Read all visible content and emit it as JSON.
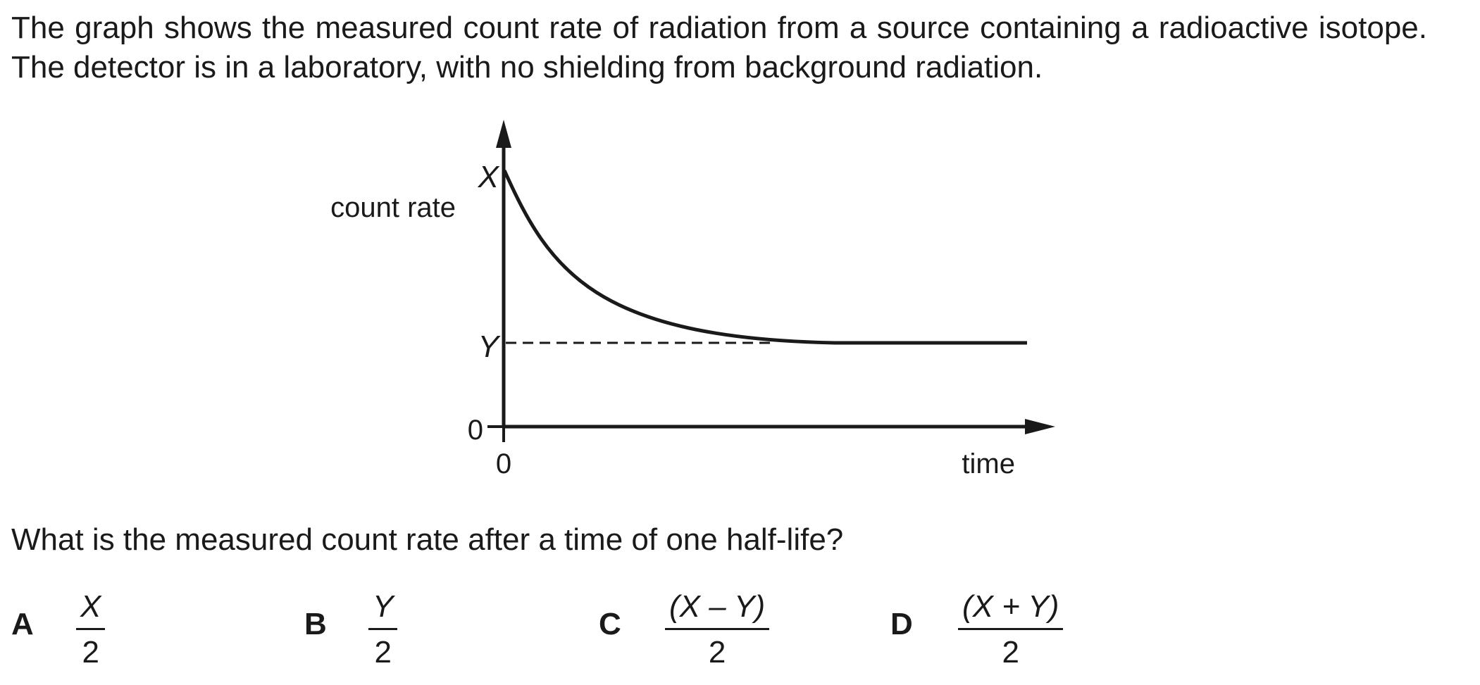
{
  "intro": "The graph shows the measured count rate of radiation from a source containing a radioactive isotope. The detector is in a laboratory, with no shielding from background radiation.",
  "graph": {
    "y_axis_label": "count rate",
    "x_axis_label": "time",
    "y_label_x": "X",
    "y_label_y": "Y",
    "y_origin": "0",
    "x_origin": "0"
  },
  "question": "What is the measured count rate after a time of one half-life?",
  "options": [
    {
      "letter": "A",
      "numerator": "X",
      "denominator": "2"
    },
    {
      "letter": "B",
      "numerator": "Y",
      "denominator": "2"
    },
    {
      "letter": "C",
      "numerator": "(X – Y)",
      "denominator": "2"
    },
    {
      "letter": "D",
      "numerator": "(X + Y)",
      "denominator": "2"
    }
  ]
}
